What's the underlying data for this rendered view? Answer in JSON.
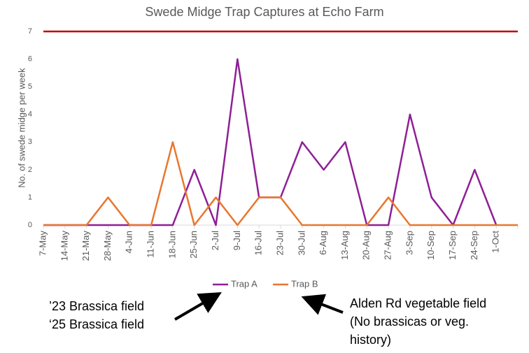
{
  "chart_data": {
    "type": "line",
    "title": "Swede Midge Trap Captures at Echo Farm",
    "y_label": "No. of swede midge per week",
    "categories": [
      "7-May",
      "14-May",
      "21-May",
      "28-May",
      "4-Jun",
      "11-Jun",
      "18-Jun",
      "25-Jun",
      "2-Jul",
      "9-Jul",
      "16-Jul",
      "23-Jul",
      "30-Jul",
      "6-Aug",
      "13-Aug",
      "20-Aug",
      "27-Aug",
      "3-Sep",
      "10-Sep",
      "17-Sep",
      "24-Sep",
      "1-Oct",
      null
    ],
    "series": [
      {
        "name": "Trap A",
        "color": "#8e1f96",
        "values": [
          0,
          0,
          0,
          0,
          0,
          0,
          0,
          2,
          0,
          6,
          1,
          1,
          3,
          2,
          3,
          0,
          0,
          4,
          1,
          0,
          2,
          0,
          null
        ]
      },
      {
        "name": "Trap B",
        "color": "#e8772e",
        "values": [
          0,
          0,
          0,
          1,
          0,
          0,
          3,
          0,
          1,
          0,
          1,
          1,
          0,
          0,
          0,
          0,
          1,
          0,
          0,
          0,
          0,
          0,
          0
        ]
      }
    ],
    "threshold": {
      "value": 7,
      "color": "#c00000"
    },
    "ylim": [
      0,
      7
    ],
    "yticks": [
      0,
      1,
      2,
      3,
      4,
      5,
      6,
      7
    ],
    "legend": "bottom",
    "annotations": [
      "’23 Brassica field",
      "‘25 Brassica field",
      "Alden Rd vegetable field",
      "(No brassicas or veg.",
      "history)"
    ]
  }
}
